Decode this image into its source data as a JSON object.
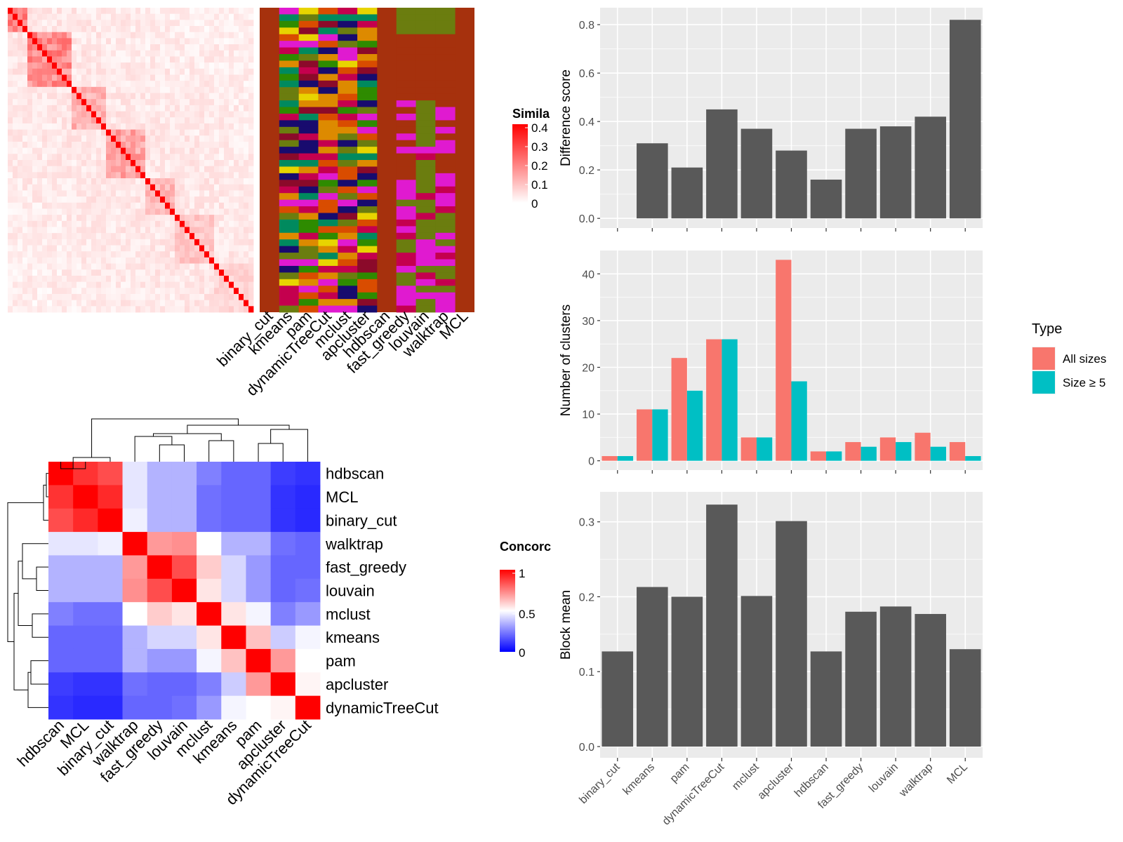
{
  "colors": {
    "panel_bg": "#ebebeb",
    "bar_dark": "#595959",
    "all_sizes": "#f8766d",
    "size_ge5": "#00bfc4",
    "heat_high": "#ff0000",
    "heat_low": "#0000ff"
  },
  "chart_data": [
    {
      "id": "similarity_heatmap",
      "type": "heatmap",
      "description_source": "top-left cell-by-cell similarity matrix with cluster assignment annotation strip",
      "legend": {
        "title": "Simila",
        "ticks": [
          "0.4",
          "0.3",
          "0.2",
          "0.1",
          "0"
        ]
      },
      "annotation_columns": [
        "binary_cut",
        "kmeans",
        "pam",
        "dynamicTreeCut",
        "mclust",
        "apcluster",
        "hdbscan",
        "fast_greedy",
        "louvain",
        "walktrap",
        "MCL"
      ]
    },
    {
      "id": "concordance_heatmap",
      "type": "heatmap",
      "legend": {
        "title": "Concorc",
        "ticks": [
          "1",
          "0.5",
          "0"
        ]
      },
      "rows": [
        "hdbscan",
        "MCL",
        "binary_cut",
        "walktrap",
        "fast_greedy",
        "louvain",
        "mclust",
        "kmeans",
        "pam",
        "apcluster",
        "dynamicTreeCut"
      ],
      "cols": [
        "hdbscan",
        "MCL",
        "binary_cut",
        "walktrap",
        "fast_greedy",
        "louvain",
        "mclust",
        "kmeans",
        "pam",
        "apcluster",
        "dynamicTreeCut"
      ],
      "values": [
        [
          1.0,
          0.9,
          0.85,
          0.45,
          0.35,
          0.35,
          0.25,
          0.2,
          0.2,
          0.12,
          0.1
        ],
        [
          0.9,
          1.0,
          0.92,
          0.45,
          0.35,
          0.35,
          0.22,
          0.2,
          0.2,
          0.1,
          0.08
        ],
        [
          0.85,
          0.92,
          1.0,
          0.47,
          0.35,
          0.35,
          0.22,
          0.2,
          0.2,
          0.1,
          0.08
        ],
        [
          0.45,
          0.45,
          0.47,
          1.0,
          0.7,
          0.72,
          0.5,
          0.35,
          0.35,
          0.22,
          0.2
        ],
        [
          0.35,
          0.35,
          0.35,
          0.7,
          1.0,
          0.85,
          0.6,
          0.42,
          0.3,
          0.2,
          0.2
        ],
        [
          0.35,
          0.35,
          0.35,
          0.72,
          0.85,
          1.0,
          0.55,
          0.42,
          0.3,
          0.2,
          0.22
        ],
        [
          0.25,
          0.22,
          0.22,
          0.5,
          0.6,
          0.55,
          1.0,
          0.55,
          0.48,
          0.25,
          0.3
        ],
        [
          0.2,
          0.2,
          0.2,
          0.35,
          0.42,
          0.42,
          0.55,
          1.0,
          0.62,
          0.4,
          0.48
        ],
        [
          0.2,
          0.2,
          0.2,
          0.35,
          0.3,
          0.3,
          0.48,
          0.62,
          1.0,
          0.7,
          0.5
        ],
        [
          0.12,
          0.1,
          0.1,
          0.22,
          0.2,
          0.2,
          0.25,
          0.4,
          0.7,
          1.0,
          0.52
        ],
        [
          0.1,
          0.08,
          0.08,
          0.2,
          0.2,
          0.22,
          0.3,
          0.48,
          0.5,
          0.52,
          1.0
        ]
      ]
    },
    {
      "id": "difference_score",
      "type": "bar",
      "categories": [
        "binary_cut",
        "kmeans",
        "pam",
        "dynamicTreeCut",
        "mclust",
        "apcluster",
        "hdbscan",
        "fast_greedy",
        "louvain",
        "walktrap",
        "MCL"
      ],
      "values": [
        0.0,
        0.31,
        0.21,
        0.45,
        0.37,
        0.28,
        0.16,
        0.37,
        0.38,
        0.42,
        0.82
      ],
      "ylabel": "Difference score",
      "yticks": [
        0.0,
        0.2,
        0.4,
        0.6,
        0.8
      ],
      "ylim": [
        -0.04,
        0.87
      ]
    },
    {
      "id": "number_of_clusters",
      "type": "bar",
      "categories": [
        "binary_cut",
        "kmeans",
        "pam",
        "dynamicTreeCut",
        "mclust",
        "apcluster",
        "hdbscan",
        "fast_greedy",
        "louvain",
        "walktrap",
        "MCL"
      ],
      "series": [
        {
          "name": "All sizes",
          "values": [
            1,
            11,
            22,
            26,
            5,
            43,
            2,
            4,
            5,
            6,
            4
          ]
        },
        {
          "name": "Size ≥ 5",
          "values": [
            1,
            11,
            15,
            26,
            5,
            17,
            2,
            3,
            4,
            3,
            1
          ]
        }
      ],
      "ylabel": "Number of clusters",
      "yticks": [
        0,
        10,
        20,
        30,
        40
      ],
      "ylim": [
        -2,
        45
      ],
      "legend": {
        "title": "Type",
        "position": "right"
      }
    },
    {
      "id": "block_mean",
      "type": "bar",
      "categories": [
        "binary_cut",
        "kmeans",
        "pam",
        "dynamicTreeCut",
        "mclust",
        "apcluster",
        "hdbscan",
        "fast_greedy",
        "louvain",
        "walktrap",
        "MCL"
      ],
      "values": [
        0.127,
        0.213,
        0.2,
        0.323,
        0.201,
        0.301,
        0.127,
        0.18,
        0.187,
        0.177,
        0.13
      ],
      "ylabel": "Block mean",
      "yticks": [
        0.0,
        0.1,
        0.2,
        0.3
      ],
      "ylim": [
        -0.015,
        0.34
      ]
    }
  ]
}
